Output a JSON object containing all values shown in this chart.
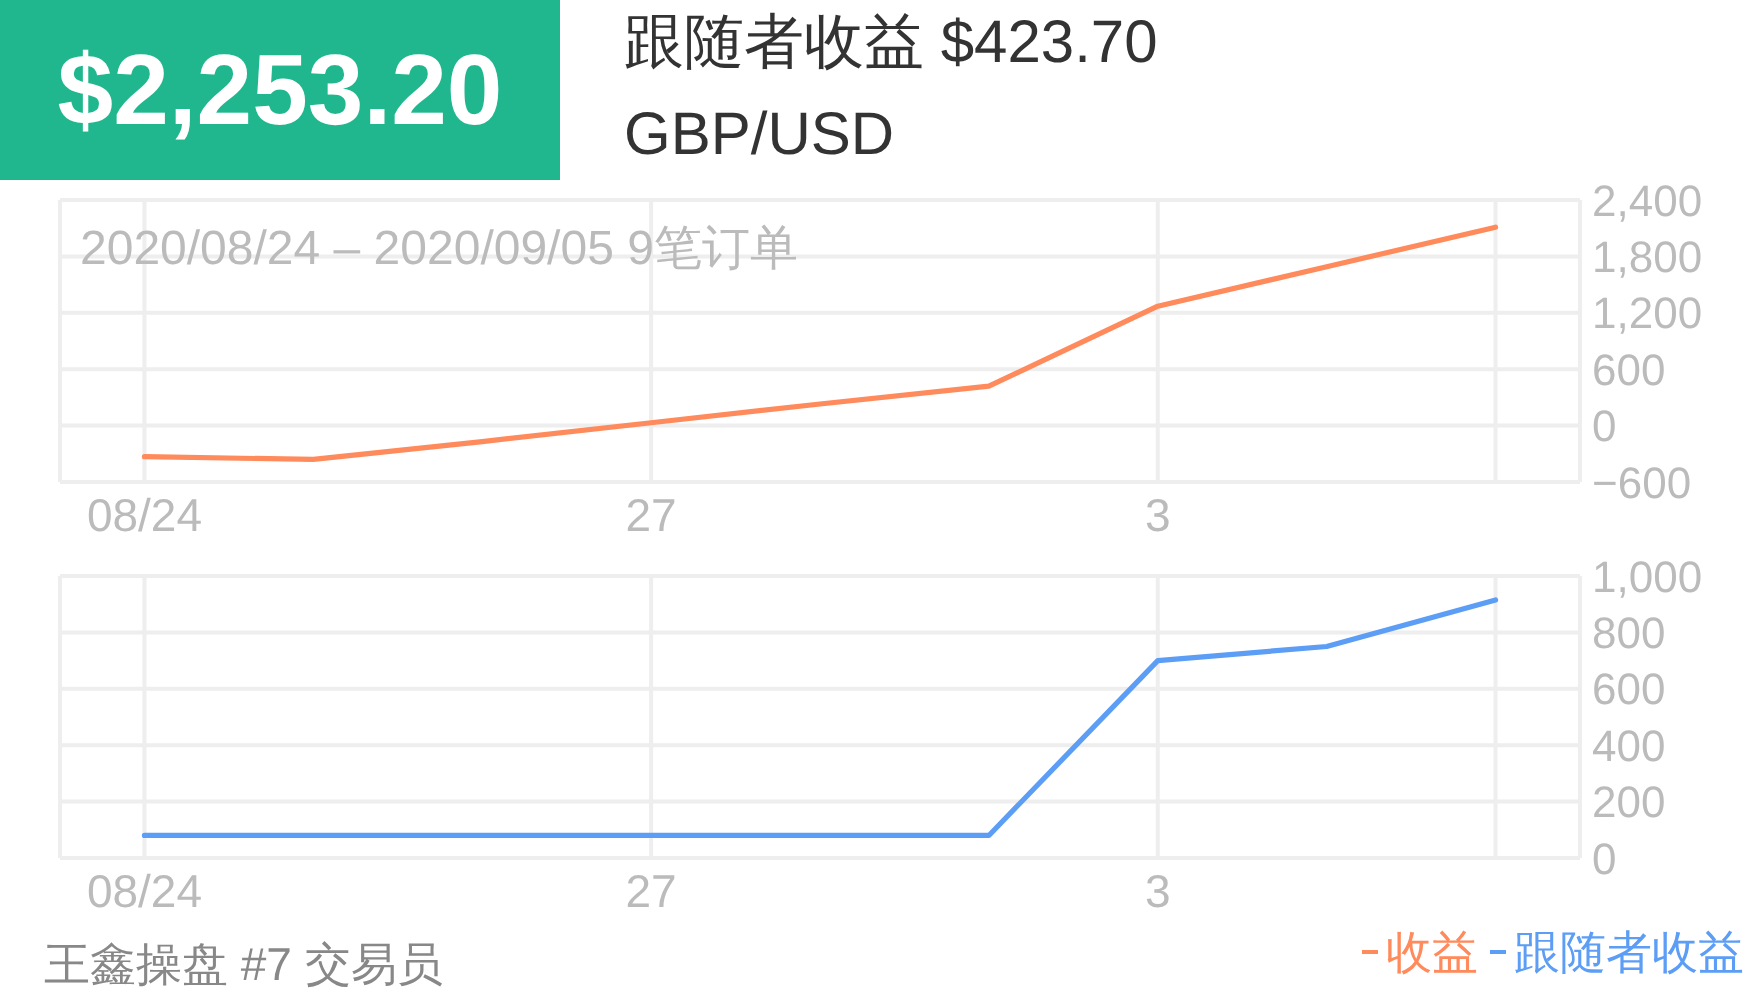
{
  "chart_data": [
    {
      "type": "line",
      "title": "$2,253.20",
      "subtitle": "跟随者收益 $423.70",
      "annotations": [
        "GBP/USD",
        "2020/08/24 – 2020/09/05 9笔订单"
      ],
      "categories": [
        "08/24",
        null,
        null,
        "27",
        null,
        null,
        "3",
        null,
        null
      ],
      "series": [
        {
          "name": "收益",
          "color": "#ff8a5b",
          "values": [
            -330,
            -360,
            -170,
            30,
            230,
            420,
            1270,
            1690,
            2110
          ]
        }
      ],
      "ylim": [
        -600,
        2400
      ],
      "yticks": [
        {
          "value": -600,
          "label": "−600"
        },
        0,
        600,
        {
          "value": 1200,
          "label": "1,200"
        },
        {
          "value": 1800,
          "label": "1,800"
        },
        {
          "value": 2400,
          "label": "2,400"
        }
      ],
      "grid": true,
      "legend": "bottom right"
    },
    {
      "type": "line",
      "annotations": [
        "王鑫操盘 #7 交易员"
      ],
      "categories": [
        "08/24",
        null,
        null,
        "27",
        null,
        null,
        "3",
        null,
        null
      ],
      "series": [
        {
          "name": "跟随者收益",
          "color": "#5c9df6",
          "values": [
            80,
            80,
            80,
            80,
            80,
            80,
            700,
            750,
            915
          ]
        }
      ],
      "ylim": [
        0,
        1000
      ],
      "yticks": [
        0,
        200,
        400,
        600,
        800,
        {
          "value": 1000,
          "label": "1,000"
        }
      ],
      "grid": true,
      "legend": "bottom right"
    }
  ]
}
